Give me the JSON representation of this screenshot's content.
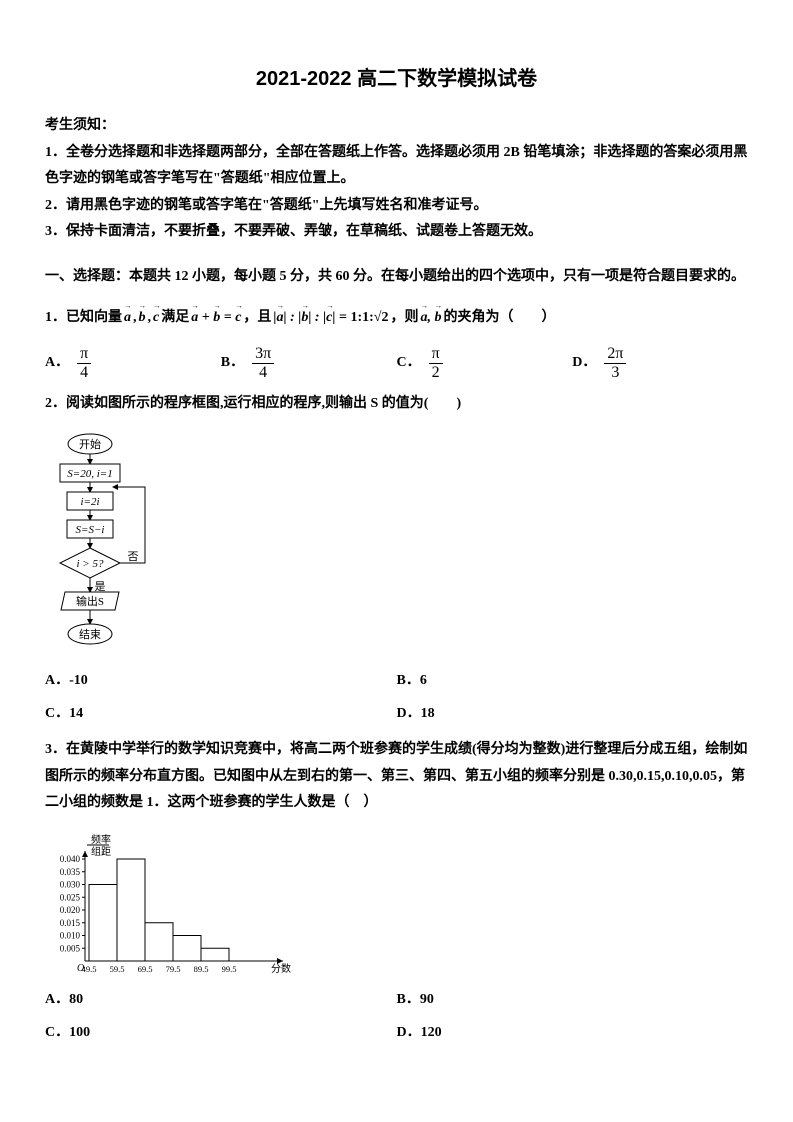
{
  "title": "2021-2022 高二下数学模拟试卷",
  "notice": {
    "heading": "考生须知：",
    "items": [
      "1．全卷分选择题和非选择题两部分，全部在答题纸上作答。选择题必须用 2B 铅笔填涂；非选择题的答案必须用黑色字迹的钢笔或答字笔写在\"答题纸\"相应位置上。",
      "2．请用黑色字迹的钢笔或答字笔在\"答题纸\"上先填写姓名和准考证号。",
      "3．保持卡面清洁，不要折叠，不要弄破、弄皱，在草稿纸、试题卷上答题无效。"
    ]
  },
  "section1": "一、选择题：本题共 12 小题，每小题 5 分，共 60 分。在每小题给出的四个选项中，只有一项是符合题目要求的。",
  "q1": {
    "prefix": "1．已知向量",
    "mid1": "满足",
    "mid2": "，且 ",
    "ratio": "= 1:1:√2",
    "mid3": "，则",
    "suffix": "的夹角为（　　）",
    "opts": {
      "A": "A．",
      "B": "B．",
      "C": "C．",
      "D": "D．"
    },
    "fracs": {
      "A": {
        "n": "π",
        "d": "4"
      },
      "B": {
        "n": "3π",
        "d": "4"
      },
      "C": {
        "n": "π",
        "d": "2"
      },
      "D": {
        "n": "2π",
        "d": "3"
      }
    }
  },
  "q2": {
    "text": "2．阅读如图所示的程序框图,运行相应的程序,则输出 S 的值为(　　)",
    "flow": {
      "start": "开始",
      "s1": "S=20, i=1",
      "s2": "i=2i",
      "s3": "S=S−i",
      "cond": "i > 5?",
      "yes": "是",
      "no": "否",
      "out": "输出S",
      "end": "结束",
      "stroke": "#000000",
      "fill": "#ffffff",
      "font": "11"
    },
    "opts": {
      "A": "A．-10",
      "B": "B．6",
      "C": "C．14",
      "D": "D．18"
    }
  },
  "q3": {
    "text": "3．在黄陵中学举行的数学知识竞赛中，将高二两个班参赛的学生成绩(得分均为整数)进行整理后分成五组，绘制如图所示的频率分布直方图。已知图中从左到右的第一、第三、第四、第五小组的频率分别是 0.30,0.15,0.10,0.05，第二小组的频数是 1．这两个班参赛的学生人数是（　）",
    "hist": {
      "ylabel_top": "频率",
      "ylabel_bot": "组距",
      "yticks": [
        "0.040",
        "0.035",
        "0.030",
        "0.025",
        "0.020",
        "0.015",
        "0.010",
        "0.005"
      ],
      "xticks": [
        "49.5",
        "59.5",
        "69.5",
        "79.5",
        "89.5",
        "99.5"
      ],
      "xlabel": "分数",
      "values": [
        0.03,
        0.04,
        0.015,
        0.01,
        0.005
      ],
      "bar_color": "#ffffff",
      "bar_stroke": "#000000",
      "axis_color": "#000000"
    },
    "opts": {
      "A": "A．80",
      "B": "B．90",
      "C": "C．100",
      "D": "D．120"
    }
  }
}
